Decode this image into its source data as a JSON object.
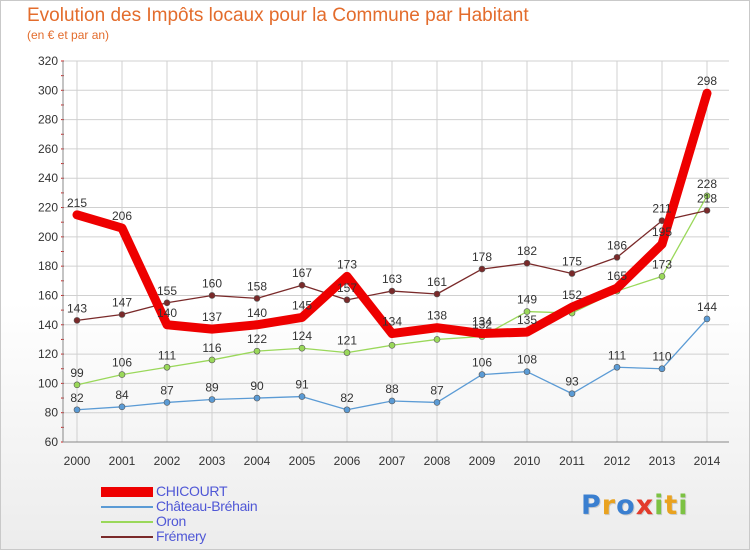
{
  "header": {
    "title": "Evolution des Impôts locaux pour la Commune par Habitant",
    "subtitle": "(en € et par an)"
  },
  "logo": {
    "text": "Proxiti",
    "letters": [
      {
        "ch": "P",
        "color": "#3a7fd0"
      },
      {
        "ch": "r",
        "color": "#e9a21f"
      },
      {
        "ch": "o",
        "color": "#3a7fd0"
      },
      {
        "ch": "x",
        "color": "#e33b2b"
      },
      {
        "ch": "i",
        "color": "#7cc243"
      },
      {
        "ch": "t",
        "color": "#e9a21f"
      },
      {
        "ch": "i",
        "color": "#7cc243"
      }
    ]
  },
  "colors": {
    "title": "#e36c2c",
    "axis_text": "#333333",
    "grid": "#d0d0d0",
    "legend_text": "#4f57d6",
    "tick_mark": "#cc2222"
  },
  "chart_data": {
    "type": "line",
    "title": "Evolution des Impôts locaux pour la Commune par Habitant",
    "subtitle": "(en € et par an)",
    "x": [
      "2000",
      "2001",
      "2002",
      "2003",
      "2004",
      "2005",
      "2006",
      "2007",
      "2008",
      "2009",
      "2010",
      "2011",
      "2012",
      "2013",
      "2014"
    ],
    "ylim": [
      60,
      320
    ],
    "yticks": [
      60,
      80,
      100,
      120,
      140,
      160,
      180,
      200,
      220,
      240,
      260,
      280,
      300,
      320
    ],
    "grid": true,
    "legend_position": "bottom-left",
    "series": [
      {
        "name": "CHICOURT",
        "color": "#ee0000",
        "values": [
          215,
          206,
          140,
          137,
          140,
          145,
          173,
          134,
          138,
          134,
          135,
          152,
          165,
          195,
          298
        ],
        "labels": [
          "215",
          "206",
          "140",
          "137",
          "140",
          "145",
          "173",
          "134",
          "138",
          "134",
          "135",
          "152",
          "165",
          "195",
          "298"
        ]
      },
      {
        "name": "Château-Bréhain",
        "color": "#5b9bd5",
        "values": [
          82,
          84,
          87,
          89,
          90,
          91,
          82,
          88,
          87,
          106,
          108,
          93,
          111,
          110,
          144
        ],
        "labels": [
          "82",
          "84",
          "87",
          "89",
          "90",
          "91",
          "82",
          "88",
          "87",
          "106",
          "108",
          "93",
          "111",
          "110",
          "144"
        ]
      },
      {
        "name": "Oron",
        "color": "#9ad85a",
        "values": [
          99,
          106,
          111,
          116,
          122,
          124,
          121,
          126,
          130,
          132,
          149,
          148,
          163,
          173,
          228
        ],
        "labels": [
          "99",
          "106",
          "111",
          "116",
          "122",
          "124",
          "121",
          "",
          "",
          "132",
          "149",
          "",
          "",
          "173",
          "228"
        ]
      },
      {
        "name": "Frémery",
        "color": "#7a2a2a",
        "values": [
          143,
          147,
          155,
          160,
          158,
          167,
          157,
          163,
          161,
          178,
          182,
          175,
          186,
          211,
          218
        ],
        "labels": [
          "143",
          "147",
          "155",
          "160",
          "158",
          "167",
          "157",
          "163",
          "161",
          "178",
          "182",
          "175",
          "186",
          "211",
          "218"
        ]
      }
    ]
  }
}
